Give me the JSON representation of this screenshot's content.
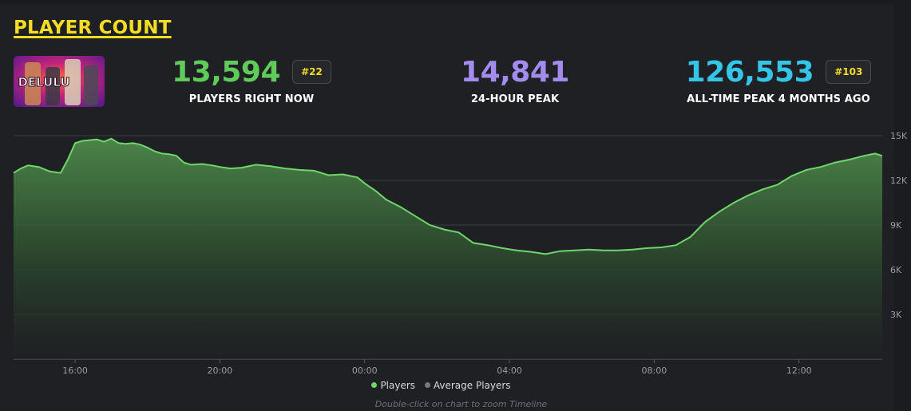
{
  "header": {
    "title": "PLAYER COUNT"
  },
  "game": {
    "thumbnail_text": "DELULU"
  },
  "stats": {
    "current": {
      "value": "13,594",
      "badge": "#22",
      "label": "PLAYERS RIGHT NOW",
      "color": "#5fcc5a"
    },
    "peak24": {
      "value": "14,841",
      "label": "24-HOUR PEAK",
      "color": "#a38cf0"
    },
    "alltime": {
      "value": "126,553",
      "badge": "#103",
      "label": "ALL-TIME PEAK 4 MONTHS AGO",
      "color": "#33c6e8"
    }
  },
  "chart_data": {
    "type": "area",
    "title": "Player Count",
    "xlabel": "",
    "ylabel": "",
    "x_ticks": [
      "16:00",
      "20:00",
      "00:00",
      "04:00",
      "08:00",
      "12:00"
    ],
    "x_tick_hours": [
      16,
      20,
      24,
      28,
      32,
      36
    ],
    "y_ticks": [
      "3K",
      "6K",
      "9K",
      "12K",
      "15K"
    ],
    "y_tick_values": [
      3000,
      6000,
      9000,
      12000,
      15000
    ],
    "ylim": [
      0,
      15000
    ],
    "xlim_hours": [
      14.3,
      38.3
    ],
    "grid": true,
    "series": [
      {
        "name": "Players",
        "color": "#6fd66a",
        "x_hours": [
          14.3,
          14.5,
          14.7,
          15.0,
          15.3,
          15.6,
          15.8,
          16.0,
          16.2,
          16.4,
          16.6,
          16.8,
          17.0,
          17.2,
          17.4,
          17.6,
          17.8,
          18.0,
          18.2,
          18.4,
          18.6,
          18.8,
          19.0,
          19.2,
          19.5,
          19.8,
          20.0,
          20.3,
          20.6,
          21.0,
          21.4,
          21.8,
          22.2,
          22.6,
          23.0,
          23.4,
          23.8,
          24.0,
          24.3,
          24.6,
          25.0,
          25.4,
          25.8,
          26.2,
          26.6,
          27.0,
          27.4,
          27.8,
          28.2,
          28.6,
          29.0,
          29.4,
          29.8,
          30.2,
          30.6,
          31.0,
          31.4,
          31.8,
          32.2,
          32.6,
          33.0,
          33.4,
          33.8,
          34.2,
          34.6,
          35.0,
          35.4,
          35.8,
          36.2,
          36.6,
          37.0,
          37.4,
          37.8,
          38.1,
          38.3
        ],
        "values": [
          12500,
          12800,
          13000,
          12900,
          12600,
          12500,
          13400,
          14500,
          14650,
          14700,
          14750,
          14600,
          14800,
          14500,
          14450,
          14500,
          14400,
          14200,
          13950,
          13800,
          13750,
          13650,
          13200,
          13050,
          13100,
          13000,
          12900,
          12800,
          12850,
          13050,
          12950,
          12800,
          12700,
          12650,
          12350,
          12400,
          12200,
          11800,
          11300,
          10700,
          10200,
          9600,
          9000,
          8700,
          8500,
          7800,
          7650,
          7450,
          7300,
          7200,
          7050,
          7250,
          7300,
          7350,
          7300,
          7300,
          7350,
          7450,
          7500,
          7650,
          8200,
          9200,
          9900,
          10500,
          11000,
          11400,
          11700,
          12300,
          12700,
          12900,
          13200,
          13400,
          13650,
          13800,
          13650
        ]
      }
    ],
    "legend": [
      {
        "name": "Players",
        "color": "#6fd66a"
      },
      {
        "name": "Average Players",
        "color": "#777a80"
      }
    ],
    "legend_position": "bottom-center"
  },
  "footer": {
    "hint": "Double-click on chart to zoom Timeline"
  }
}
